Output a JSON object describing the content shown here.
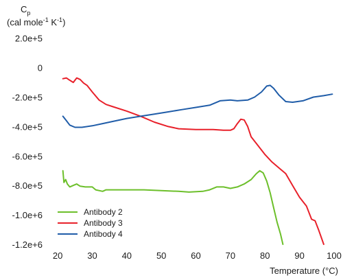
{
  "chart_data": {
    "type": "line",
    "title": "",
    "ylabel_symbol": "C",
    "ylabel_subscript": "p",
    "ylabel_units_before": "(cal mole",
    "ylabel_units_exp1": "-1",
    "ylabel_units_mid": " K",
    "ylabel_units_exp2": "-1",
    "ylabel_units_after": ")",
    "xlabel": "Temperature (°C)",
    "xlim": [
      17,
      101
    ],
    "ylim": [
      -1200000,
      250000
    ],
    "xticks": [
      20,
      30,
      40,
      50,
      60,
      70,
      80,
      90,
      100
    ],
    "xtick_labels": [
      "20",
      "30",
      "40",
      "50",
      "60",
      "70",
      "80",
      "90",
      "100"
    ],
    "yticks": [
      200000,
      0,
      -200000,
      -400000,
      -600000,
      -800000,
      -1000000,
      -1200000
    ],
    "ytick_labels": [
      "2.0e+5",
      "0",
      "-2.0e+5",
      "-4.0e+5",
      "-6.0e+5",
      "-8.0e+5",
      "-1.0e+6",
      "-1.2e+6"
    ],
    "grid": false,
    "legend_position": "bottom-left",
    "series": [
      {
        "name": "Antibody 2",
        "color": "#6cbf2a",
        "points": [
          [
            21.5,
            -700000
          ],
          [
            21.8,
            -780000
          ],
          [
            22.3,
            -760000
          ],
          [
            22.8,
            -790000
          ],
          [
            23.5,
            -810000
          ],
          [
            24.5,
            -800000
          ],
          [
            25.5,
            -790000
          ],
          [
            26.5,
            -805000
          ],
          [
            28,
            -810000
          ],
          [
            30,
            -810000
          ],
          [
            31,
            -830000
          ],
          [
            33,
            -840000
          ],
          [
            34,
            -830000
          ],
          [
            36,
            -830000
          ],
          [
            40,
            -830000
          ],
          [
            45,
            -830000
          ],
          [
            50,
            -835000
          ],
          [
            55,
            -840000
          ],
          [
            58,
            -845000
          ],
          [
            62,
            -840000
          ],
          [
            64,
            -830000
          ],
          [
            66,
            -810000
          ],
          [
            68,
            -810000
          ],
          [
            70,
            -820000
          ],
          [
            72,
            -810000
          ],
          [
            74,
            -790000
          ],
          [
            76,
            -760000
          ],
          [
            77.5,
            -720000
          ],
          [
            78.5,
            -700000
          ],
          [
            79.5,
            -715000
          ],
          [
            80.5,
            -770000
          ],
          [
            81.5,
            -850000
          ],
          [
            82.5,
            -950000
          ],
          [
            83.5,
            -1050000
          ],
          [
            84.5,
            -1130000
          ],
          [
            85.2,
            -1200000
          ]
        ]
      },
      {
        "name": "Antibody 3",
        "color": "#e8202a",
        "points": [
          [
            21.5,
            -75000
          ],
          [
            22.5,
            -70000
          ],
          [
            23.5,
            -85000
          ],
          [
            24.5,
            -100000
          ],
          [
            25.5,
            -70000
          ],
          [
            26.5,
            -80000
          ],
          [
            27.5,
            -105000
          ],
          [
            28.5,
            -120000
          ],
          [
            30,
            -165000
          ],
          [
            32,
            -220000
          ],
          [
            34,
            -250000
          ],
          [
            36,
            -265000
          ],
          [
            40,
            -295000
          ],
          [
            44,
            -330000
          ],
          [
            48,
            -370000
          ],
          [
            52,
            -400000
          ],
          [
            55,
            -415000
          ],
          [
            60,
            -420000
          ],
          [
            65,
            -420000
          ],
          [
            68,
            -425000
          ],
          [
            70,
            -425000
          ],
          [
            71,
            -415000
          ],
          [
            72,
            -380000
          ],
          [
            73,
            -350000
          ],
          [
            74,
            -355000
          ],
          [
            75,
            -400000
          ],
          [
            76,
            -470000
          ],
          [
            78,
            -530000
          ],
          [
            80,
            -590000
          ],
          [
            82,
            -640000
          ],
          [
            84,
            -680000
          ],
          [
            86,
            -720000
          ],
          [
            88,
            -800000
          ],
          [
            90,
            -880000
          ],
          [
            92,
            -940000
          ],
          [
            93.5,
            -1030000
          ],
          [
            94.5,
            -1040000
          ],
          [
            95.5,
            -1100000
          ],
          [
            97,
            -1200000
          ]
        ]
      },
      {
        "name": "Antibody 4",
        "color": "#1f5ca8",
        "points": [
          [
            21.5,
            -330000
          ],
          [
            22.5,
            -360000
          ],
          [
            23.5,
            -390000
          ],
          [
            25,
            -405000
          ],
          [
            27,
            -405000
          ],
          [
            30,
            -395000
          ],
          [
            33,
            -380000
          ],
          [
            36,
            -365000
          ],
          [
            40,
            -345000
          ],
          [
            44,
            -330000
          ],
          [
            48,
            -315000
          ],
          [
            52,
            -300000
          ],
          [
            56,
            -285000
          ],
          [
            60,
            -270000
          ],
          [
            64,
            -255000
          ],
          [
            67,
            -225000
          ],
          [
            70,
            -220000
          ],
          [
            72,
            -225000
          ],
          [
            75,
            -220000
          ],
          [
            77,
            -200000
          ],
          [
            79,
            -165000
          ],
          [
            80.5,
            -125000
          ],
          [
            81.5,
            -120000
          ],
          [
            82.5,
            -140000
          ],
          [
            84,
            -185000
          ],
          [
            86,
            -230000
          ],
          [
            88,
            -235000
          ],
          [
            91,
            -225000
          ],
          [
            94,
            -200000
          ],
          [
            97,
            -190000
          ],
          [
            99.5,
            -180000
          ]
        ]
      }
    ]
  }
}
